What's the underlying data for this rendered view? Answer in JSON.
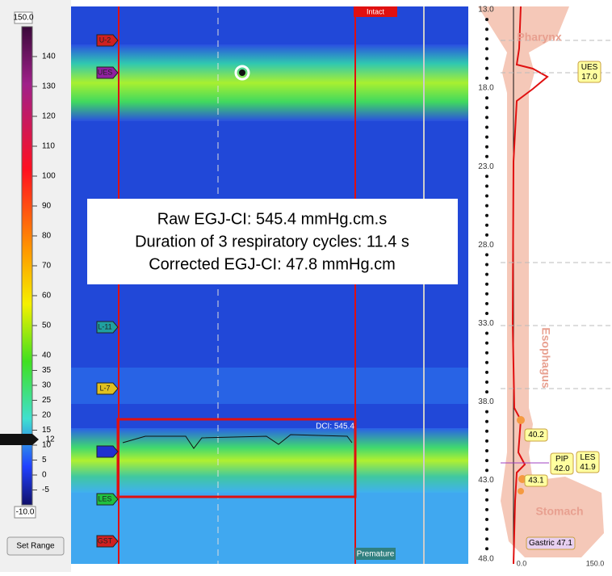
{
  "color_scale": {
    "max": "150.0",
    "min": "-10.0",
    "ticks": [
      140,
      130,
      120,
      110,
      100,
      90,
      80,
      70,
      60,
      50,
      40,
      35,
      30,
      25,
      20,
      15,
      10,
      5,
      0,
      -5
    ],
    "current": "12"
  },
  "buttons": {
    "set_range": "Set Range"
  },
  "plot": {
    "sensors": [
      "U-2",
      "UES",
      "L-11",
      "L-7",
      "LES",
      "GST"
    ],
    "intact": "Intact",
    "premature": "Premature",
    "dci": "DCI: 545.4",
    "overlay": [
      "Raw EGJ-CI: 545.4 mmHg.cm.s",
      "Duration of 3 respiratory cycles: 11.4 s",
      "Corrected EGJ-CI: 47.8 mmHg.cm"
    ]
  },
  "profile": {
    "depths": [
      "13.0",
      "18.0",
      "23.0",
      "28.0",
      "33.0",
      "38.0",
      "43.0",
      "48.0"
    ],
    "regions": [
      "Pharynx",
      "Esophagus",
      "Stomach"
    ],
    "markers": [
      "UES\n17.0",
      "40.2",
      "PIP\n42.0",
      "LES\n41.9",
      "43.1",
      "Gastric 47.1"
    ],
    "x_axis": [
      "0.0",
      "150.0"
    ]
  }
}
